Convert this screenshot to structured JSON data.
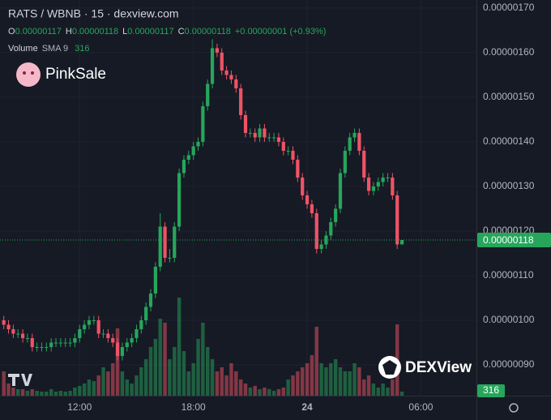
{
  "chart_data": {
    "type": "candlestick",
    "title": "RATS / WBNB · 15 · dexview.com",
    "ohlc_legend": [
      {
        "key": "O",
        "value": "0.00000117"
      },
      {
        "key": "H",
        "value": "0.00000118"
      },
      {
        "key": "L",
        "value": "0.00000117"
      },
      {
        "key": "C",
        "value": "0.00000118"
      }
    ],
    "change": "+0.00000001 (+0.93%)",
    "volume_legend": {
      "name": "Volume",
      "study": "SMA 9"
    },
    "watermarks": [
      "PinkSale",
      "DEXView"
    ],
    "up_color": "#26a65b",
    "down_color": "#ef5366",
    "grid": true,
    "xlim": [
      7.8,
      32.93
    ],
    "xticks": [
      {
        "value": 12,
        "label": "12:00"
      },
      {
        "value": 18,
        "label": "18:00"
      },
      {
        "value": 24,
        "label": "24"
      },
      {
        "value": 30,
        "label": "06:00"
      }
    ],
    "ylim": [
      8.31e-07,
      1.718e-06
    ],
    "yticks": [
      {
        "value": 9e-07,
        "label": "0.00000090"
      },
      {
        "value": 1e-06,
        "label": "0.00000100"
      },
      {
        "value": 1.1e-06,
        "label": "0.00000110"
      },
      {
        "value": 1.2e-06,
        "label": "0.00000120"
      },
      {
        "value": 1.3e-06,
        "label": "0.00000130"
      },
      {
        "value": 1.4e-06,
        "label": "0.00000140"
      },
      {
        "value": 1.5e-06,
        "label": "0.00000150"
      },
      {
        "value": 1.6e-06,
        "label": "0.00000160"
      },
      {
        "value": 1.7e-06,
        "label": "0.00000170"
      }
    ],
    "price_label": {
      "value": 1.18e-06,
      "label": "0.00000118"
    },
    "x": [
      8,
      8.25,
      8.5,
      8.75,
      9,
      9.25,
      9.5,
      9.75,
      10,
      10.25,
      10.5,
      10.75,
      11,
      11.25,
      11.5,
      11.75,
      12,
      12.25,
      12.5,
      12.75,
      13,
      13.25,
      13.5,
      13.75,
      14,
      14.25,
      14.5,
      14.75,
      15,
      15.25,
      15.5,
      15.75,
      16,
      16.25,
      16.5,
      16.75,
      17,
      17.25,
      17.5,
      17.75,
      18,
      18.25,
      18.5,
      18.75,
      19,
      19.25,
      19.5,
      19.75,
      20,
      20.25,
      20.5,
      20.75,
      21,
      21.25,
      21.5,
      21.75,
      22,
      22.25,
      22.5,
      22.75,
      23,
      23.25,
      23.5,
      23.75,
      24,
      24.25,
      24.5,
      24.75,
      25,
      25.25,
      25.5,
      25.75,
      26,
      26.25,
      26.5,
      26.75,
      27,
      27.25,
      27.5,
      27.75,
      28,
      28.25,
      28.5,
      28.75,
      29
    ],
    "open": [
      1e-06,
      9.9e-07,
      9.8e-07,
      9.7e-07,
      9.7e-07,
      9.6e-07,
      9.6e-07,
      9.4e-07,
      9.4e-07,
      9.4e-07,
      9.4e-07,
      9.5e-07,
      9.5e-07,
      9.5e-07,
      9.5e-07,
      9.5e-07,
      9.6e-07,
      9.8e-07,
      9.9e-07,
      1e-06,
      1e-06,
      9.7e-07,
      9.7e-07,
      9.6e-07,
      9.5e-07,
      9.2e-07,
      9.4e-07,
      9.5e-07,
      9.6e-07,
      9.8e-07,
      1e-06,
      1.03e-06,
      1.06e-06,
      1.12e-06,
      1.21e-06,
      1.14e-06,
      1.14e-06,
      1.21e-06,
      1.33e-06,
      1.36e-06,
      1.37e-06,
      1.39e-06,
      1.4e-06,
      1.48e-06,
      1.53e-06,
      1.61e-06,
      1.6e-06,
      1.56e-06,
      1.55e-06,
      1.54e-06,
      1.52e-06,
      1.46e-06,
      1.42e-06,
      1.42e-06,
      1.41e-06,
      1.43e-06,
      1.41e-06,
      1.41e-06,
      1.41e-06,
      1.4e-06,
      1.38e-06,
      1.38e-06,
      1.36e-06,
      1.32e-06,
      1.28e-06,
      1.26e-06,
      1.24e-06,
      1.16e-06,
      1.17e-06,
      1.19e-06,
      1.22e-06,
      1.25e-06,
      1.33e-06,
      1.38e-06,
      1.41e-06,
      1.42e-06,
      1.38e-06,
      1.32e-06,
      1.29e-06,
      1.3e-06,
      1.31e-06,
      1.32e-06,
      1.32e-06,
      1.28e-06,
      1.17e-06
    ],
    "high": [
      1.01e-06,
      1e-06,
      9.9e-07,
      9.8e-07,
      9.8e-07,
      9.7e-07,
      9.7e-07,
      9.5e-07,
      9.5e-07,
      9.5e-07,
      9.6e-07,
      9.6e-07,
      9.6e-07,
      9.6e-07,
      9.6e-07,
      9.7e-07,
      9.9e-07,
      1e-06,
      1.01e-06,
      1.01e-06,
      1.01e-06,
      9.8e-07,
      9.8e-07,
      9.7e-07,
      9.6e-07,
      9.5e-07,
      9.6e-07,
      9.7e-07,
      9.9e-07,
      1.01e-06,
      1.04e-06,
      1.07e-06,
      1.13e-06,
      1.24e-06,
      1.22e-06,
      1.16e-06,
      1.22e-06,
      1.34e-06,
      1.37e-06,
      1.38e-06,
      1.4e-06,
      1.41e-06,
      1.49e-06,
      1.54e-06,
      1.63e-06,
      1.62e-06,
      1.61e-06,
      1.57e-06,
      1.56e-06,
      1.55e-06,
      1.53e-06,
      1.47e-06,
      1.43e-06,
      1.43e-06,
      1.44e-06,
      1.44e-06,
      1.42e-06,
      1.42e-06,
      1.42e-06,
      1.41e-06,
      1.39e-06,
      1.39e-06,
      1.37e-06,
      1.33e-06,
      1.29e-06,
      1.27e-06,
      1.25e-06,
      1.18e-06,
      1.2e-06,
      1.23e-06,
      1.26e-06,
      1.34e-06,
      1.39e-06,
      1.42e-06,
      1.43e-06,
      1.43e-06,
      1.39e-06,
      1.33e-06,
      1.31e-06,
      1.32e-06,
      1.33e-06,
      1.33e-06,
      1.33e-06,
      1.29e-06,
      1.18e-06
    ],
    "low": [
      9.8e-07,
      9.7e-07,
      9.6e-07,
      9.6e-07,
      9.5e-07,
      9.5e-07,
      9.3e-07,
      9.3e-07,
      9.3e-07,
      9.3e-07,
      9.3e-07,
      9.4e-07,
      9.4e-07,
      9.4e-07,
      9.4e-07,
      9.4e-07,
      9.5e-07,
      9.7e-07,
      9.8e-07,
      9.9e-07,
      9.6e-07,
      9.6e-07,
      9.5e-07,
      9.4e-07,
      9.1e-07,
      9.1e-07,
      9.3e-07,
      9.4e-07,
      9.5e-07,
      9.7e-07,
      9.9e-07,
      1.02e-06,
      1.05e-06,
      1.11e-06,
      1.13e-06,
      1.13e-06,
      1.13e-06,
      1.2e-06,
      1.32e-06,
      1.35e-06,
      1.36e-06,
      1.38e-06,
      1.39e-06,
      1.47e-06,
      1.52e-06,
      1.59e-06,
      1.55e-06,
      1.54e-06,
      1.53e-06,
      1.51e-06,
      1.45e-06,
      1.41e-06,
      1.41e-06,
      1.4e-06,
      1.4e-06,
      1.4e-06,
      1.4e-06,
      1.4e-06,
      1.39e-06,
      1.37e-06,
      1.37e-06,
      1.35e-06,
      1.31e-06,
      1.27e-06,
      1.25e-06,
      1.23e-06,
      1.15e-06,
      1.15e-06,
      1.16e-06,
      1.18e-06,
      1.21e-06,
      1.24e-06,
      1.32e-06,
      1.37e-06,
      1.4e-06,
      1.37e-06,
      1.31e-06,
      1.28e-06,
      1.28e-06,
      1.29e-06,
      1.3e-06,
      1.31e-06,
      1.27e-06,
      1.16e-06,
      1.17e-06
    ],
    "close": [
      9.9e-07,
      9.8e-07,
      9.7e-07,
      9.7e-07,
      9.6e-07,
      9.6e-07,
      9.4e-07,
      9.4e-07,
      9.4e-07,
      9.4e-07,
      9.5e-07,
      9.5e-07,
      9.5e-07,
      9.5e-07,
      9.5e-07,
      9.6e-07,
      9.8e-07,
      9.9e-07,
      1e-06,
      1e-06,
      9.7e-07,
      9.7e-07,
      9.6e-07,
      9.5e-07,
      9.2e-07,
      9.4e-07,
      9.5e-07,
      9.6e-07,
      9.8e-07,
      1e-06,
      1.03e-06,
      1.06e-06,
      1.12e-06,
      1.21e-06,
      1.14e-06,
      1.14e-06,
      1.21e-06,
      1.33e-06,
      1.36e-06,
      1.37e-06,
      1.39e-06,
      1.4e-06,
      1.48e-06,
      1.53e-06,
      1.61e-06,
      1.6e-06,
      1.56e-06,
      1.55e-06,
      1.54e-06,
      1.52e-06,
      1.46e-06,
      1.42e-06,
      1.42e-06,
      1.41e-06,
      1.43e-06,
      1.41e-06,
      1.41e-06,
      1.41e-06,
      1.4e-06,
      1.38e-06,
      1.38e-06,
      1.36e-06,
      1.32e-06,
      1.28e-06,
      1.26e-06,
      1.24e-06,
      1.16e-06,
      1.17e-06,
      1.19e-06,
      1.22e-06,
      1.25e-06,
      1.33e-06,
      1.38e-06,
      1.41e-06,
      1.42e-06,
      1.38e-06,
      1.32e-06,
      1.29e-06,
      1.3e-06,
      1.31e-06,
      1.32e-06,
      1.32e-06,
      1.28e-06,
      1.17e-06,
      1.18e-06
    ],
    "volume": [
      1890,
      945,
      630,
      504,
      504,
      378,
      504,
      378,
      315,
      315,
      504,
      315,
      378,
      315,
      378,
      630,
      756,
      945,
      1260,
      1134,
      1575,
      2205,
      1890,
      2520,
      5229,
      1890,
      1260,
      945,
      1575,
      2205,
      2835,
      3780,
      4410,
      5985,
      5670,
      2835,
      3780,
      7623,
      3465,
      1890,
      2520,
      4410,
      5670,
      3780,
      2835,
      1890,
      2205,
      1575,
      2520,
      1890,
      1260,
      945,
      630,
      756,
      504,
      630,
      504,
      378,
      504,
      630,
      1260,
      1575,
      1890,
      2205,
      2520,
      3150,
      5355,
      2520,
      2205,
      2520,
      2835,
      2205,
      1890,
      1890,
      2520,
      2205,
      1260,
      1575,
      945,
      630,
      945,
      630,
      1260,
      5544,
      316
    ]
  }
}
